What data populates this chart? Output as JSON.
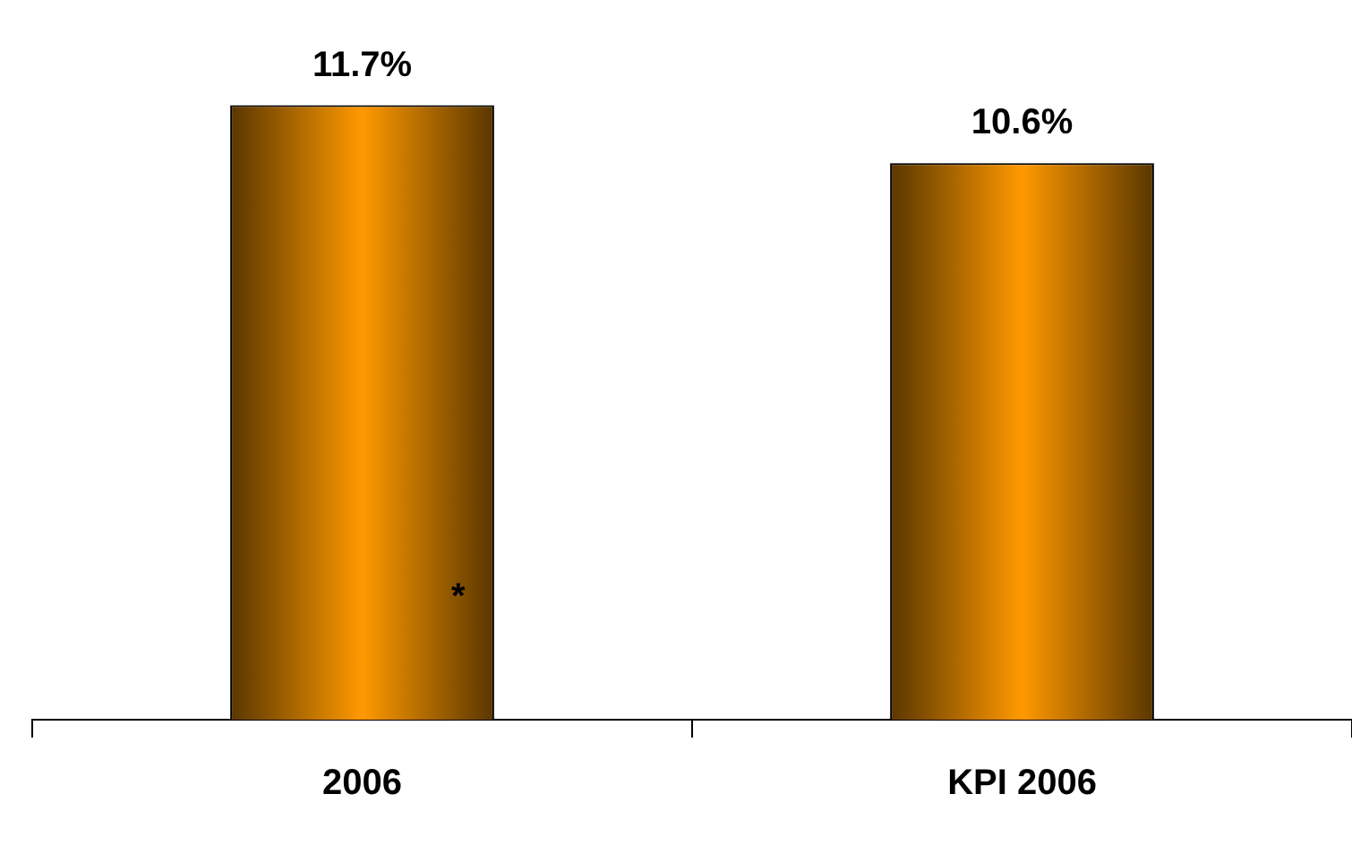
{
  "chart_data": {
    "type": "bar",
    "categories": [
      "2006",
      "KPI 2006"
    ],
    "values": [
      11.7,
      10.6
    ],
    "color": "#ff9900",
    "value_labels": [
      "11.7%",
      "10.6%"
    ],
    "grid": false,
    "legend": false,
    "annotations": [
      "*"
    ]
  }
}
